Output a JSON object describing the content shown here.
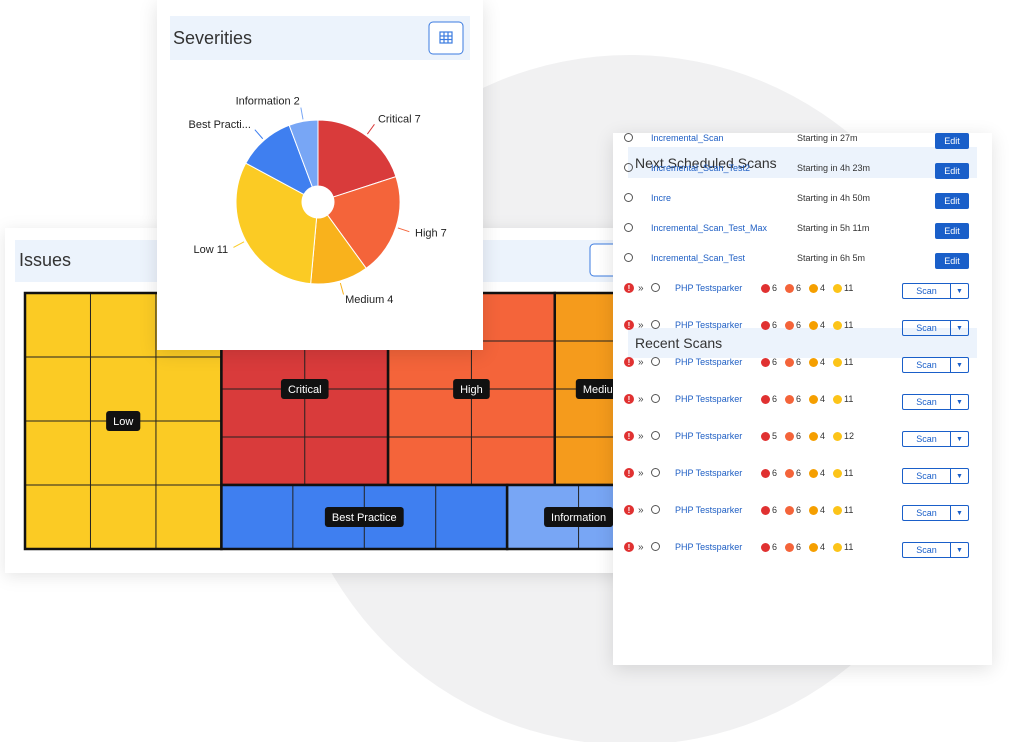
{
  "chart_data": [
    {
      "type": "pie",
      "title": "Severities",
      "labels": [
        "Critical 7",
        "High 7",
        "Medium 4",
        "Low 11",
        "Best Practi...",
        "Information 2"
      ],
      "values": [
        7,
        7,
        4,
        11,
        4,
        2
      ],
      "colors": [
        "#d93b3b",
        "#f4643a",
        "#f9b21c",
        "#fbcb24",
        "#3f7ff0",
        "#78a6f5"
      ]
    },
    {
      "type": "treemap",
      "title": "Issues",
      "categories": [
        "Low",
        "Critical",
        "High",
        "Medium",
        "Best Practice",
        "Information"
      ],
      "values": [
        11,
        7,
        7,
        4,
        4,
        2
      ],
      "colors": [
        "#fbcb24",
        "#d93b3b",
        "#f4643a",
        "#f59b1c",
        "#3f7ff0",
        "#78a6f5"
      ]
    }
  ],
  "scans": {
    "scheduled": {
      "title": "Next Scheduled Scans",
      "button": "Edit",
      "rows": [
        {
          "name": "Incremental_Scan",
          "starting": "Starting in 27m"
        },
        {
          "name": "Incremental_Scan_Test2",
          "starting": "Starting in 4h 23m"
        },
        {
          "name": "Incre",
          "starting": "Starting in 4h 50m"
        },
        {
          "name": "Incremental_Scan_Test_Max",
          "starting": "Starting in 5h 11m"
        },
        {
          "name": "Incremental_Scan_Test",
          "starting": "Starting in 6h 5m"
        }
      ]
    },
    "recent": {
      "title": "Recent Scans",
      "button": "Scan",
      "rows": [
        {
          "name": "PHP Testsparker",
          "counts": [
            6,
            6,
            4,
            11
          ]
        },
        {
          "name": "PHP Testsparker",
          "counts": [
            6,
            6,
            4,
            11
          ]
        },
        {
          "name": "PHP Testsparker",
          "counts": [
            6,
            6,
            4,
            11
          ]
        },
        {
          "name": "PHP Testsparker",
          "counts": [
            6,
            6,
            4,
            11
          ]
        },
        {
          "name": "PHP Testsparker",
          "counts": [
            5,
            6,
            4,
            12
          ]
        },
        {
          "name": "PHP Testsparker",
          "counts": [
            6,
            6,
            4,
            11
          ]
        },
        {
          "name": "PHP Testsparker",
          "counts": [
            6,
            6,
            4,
            11
          ]
        },
        {
          "name": "PHP Testsparker",
          "counts": [
            6,
            6,
            4,
            11
          ]
        }
      ]
    }
  }
}
